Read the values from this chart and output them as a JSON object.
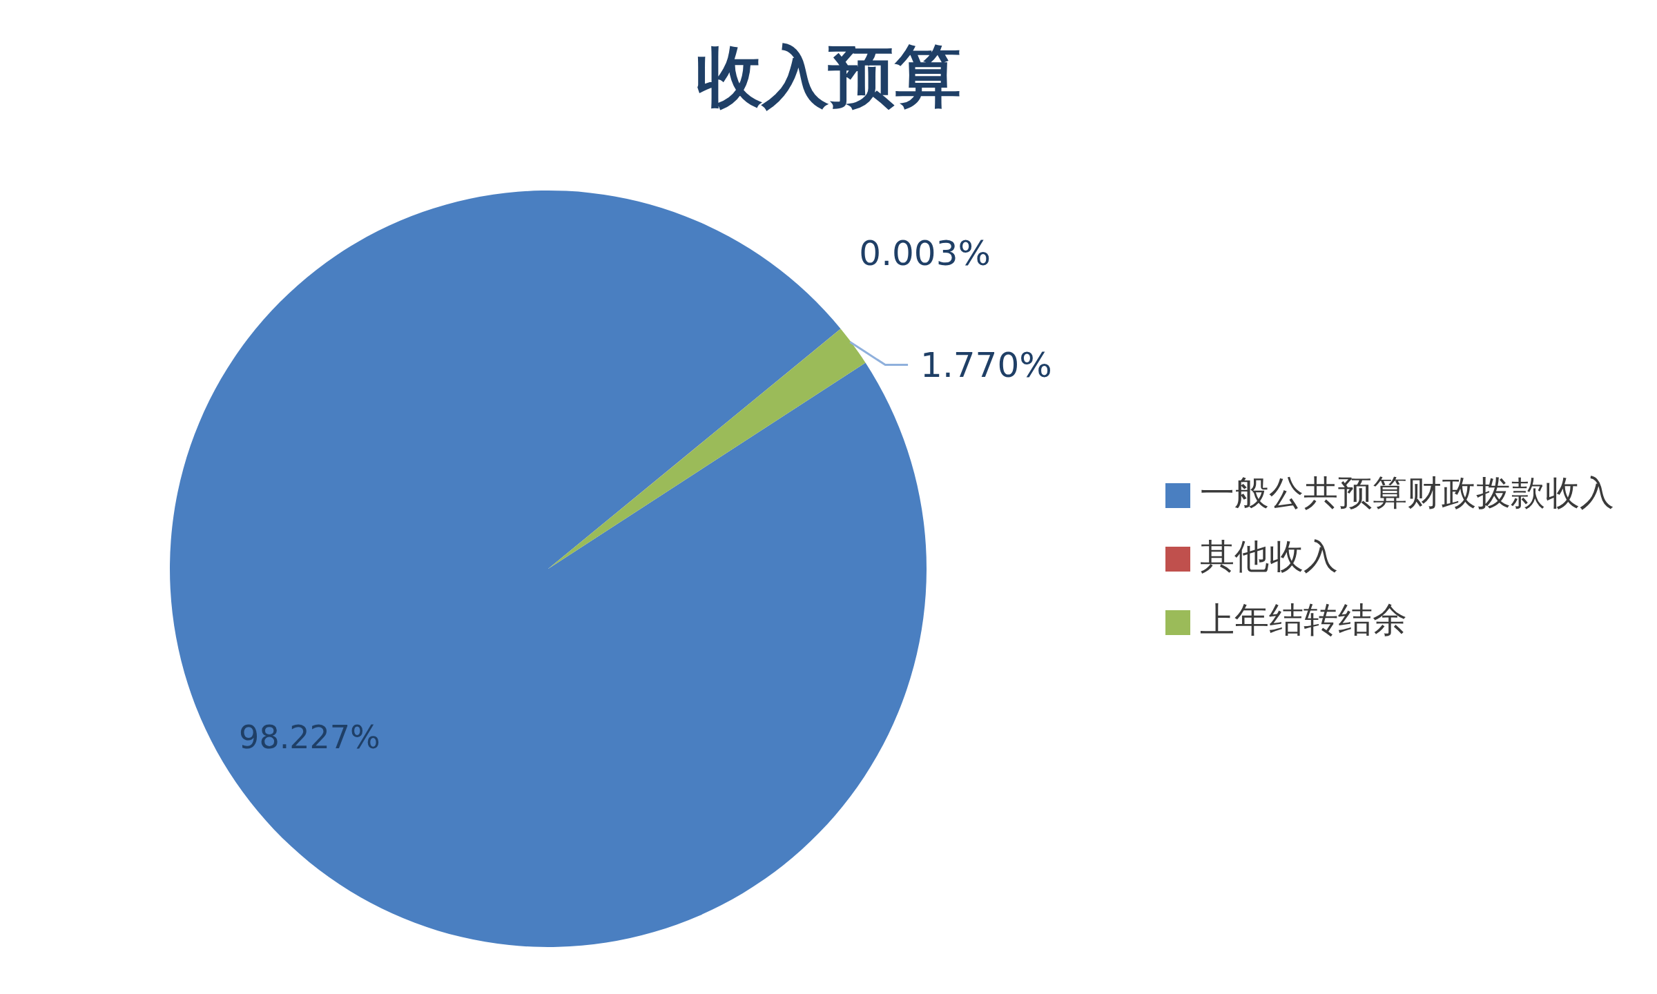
{
  "chart_data": {
    "type": "pie",
    "title": "收入预算",
    "categories": [
      "一般公共预算财政拨款收入",
      "其他收入",
      "上年结转结余"
    ],
    "values": [
      98.227,
      0.003,
      1.77
    ],
    "value_labels": [
      "98.227%",
      "0.003%",
      "1.770%"
    ],
    "colors": [
      "#4a7fc1",
      "#c0504d",
      "#9bbb59"
    ],
    "legend": "right"
  }
}
